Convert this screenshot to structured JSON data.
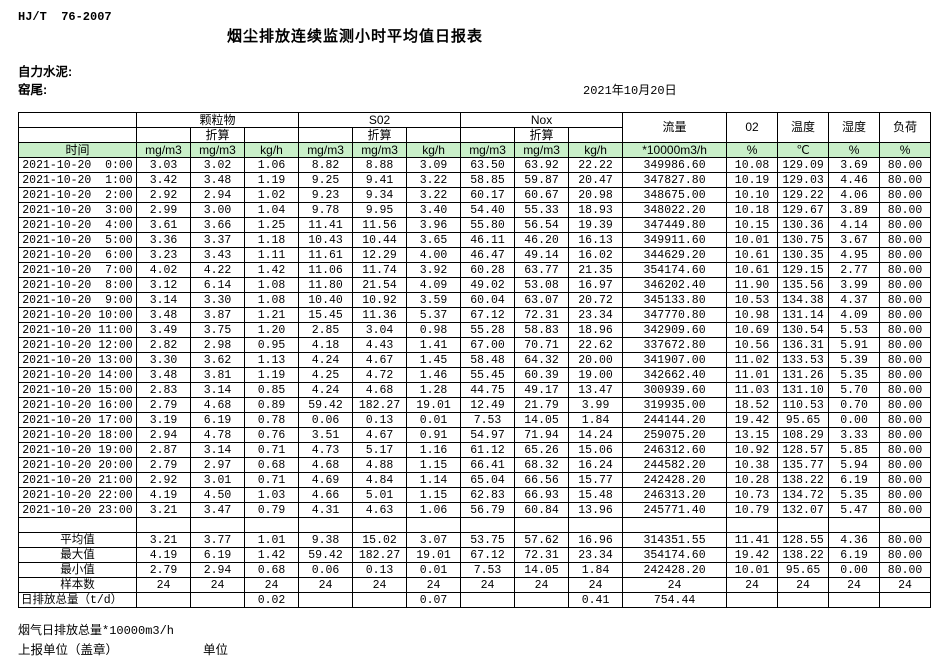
{
  "page": {
    "standard_code": "HJ/T  76-2007",
    "title": "烟尘排放连续监测小时平均值日报表",
    "company": "自力水泥:",
    "location": "窑尾:",
    "date": "2021年10月20日"
  },
  "colors": {
    "header_row_green": "#c9efc9"
  },
  "table": {
    "time_header": "时间",
    "conversion_label": "折算",
    "groups": [
      {
        "label": "颗粒物"
      },
      {
        "label": "S02"
      },
      {
        "label": "Nox"
      }
    ],
    "single_cols": [
      "流量",
      "02",
      "温度",
      "湿度",
      "负荷"
    ],
    "units": [
      "mg/m3",
      "mg/m3",
      "kg/h",
      "mg/m3",
      "mg/m3",
      "kg/h",
      "mg/m3",
      "mg/m3",
      "kg/h",
      "*10000m3/h",
      "%",
      "℃",
      "%",
      "%"
    ],
    "rows": [
      {
        "time": "2021-10-20  0:00",
        "values": [
          "3.03",
          "3.02",
          "1.06",
          "8.82",
          "8.88",
          "3.09",
          "63.50",
          "63.92",
          "22.22",
          "349986.60",
          "10.08",
          "129.09",
          "3.69",
          "80.00"
        ]
      },
      {
        "time": "2021-10-20  1:00",
        "values": [
          "3.42",
          "3.48",
          "1.19",
          "9.25",
          "9.41",
          "3.22",
          "58.85",
          "59.87",
          "20.47",
          "347827.80",
          "10.19",
          "129.03",
          "4.46",
          "80.00"
        ]
      },
      {
        "time": "2021-10-20  2:00",
        "values": [
          "2.92",
          "2.94",
          "1.02",
          "9.23",
          "9.34",
          "3.22",
          "60.17",
          "60.67",
          "20.98",
          "348675.00",
          "10.10",
          "129.22",
          "4.06",
          "80.00"
        ]
      },
      {
        "time": "2021-10-20  3:00",
        "values": [
          "2.99",
          "3.00",
          "1.04",
          "9.78",
          "9.95",
          "3.40",
          "54.40",
          "55.33",
          "18.93",
          "348022.20",
          "10.18",
          "129.67",
          "3.89",
          "80.00"
        ]
      },
      {
        "time": "2021-10-20  4:00",
        "values": [
          "3.61",
          "3.66",
          "1.25",
          "11.41",
          "11.56",
          "3.96",
          "55.80",
          "56.54",
          "19.39",
          "347449.80",
          "10.15",
          "130.36",
          "4.14",
          "80.00"
        ]
      },
      {
        "time": "2021-10-20  5:00",
        "values": [
          "3.36",
          "3.37",
          "1.18",
          "10.43",
          "10.44",
          "3.65",
          "46.11",
          "46.20",
          "16.13",
          "349911.60",
          "10.01",
          "130.75",
          "3.67",
          "80.00"
        ]
      },
      {
        "time": "2021-10-20  6:00",
        "values": [
          "3.23",
          "3.43",
          "1.11",
          "11.61",
          "12.29",
          "4.00",
          "46.47",
          "49.14",
          "16.02",
          "344629.20",
          "10.61",
          "130.35",
          "4.95",
          "80.00"
        ]
      },
      {
        "time": "2021-10-20  7:00",
        "values": [
          "4.02",
          "4.22",
          "1.42",
          "11.06",
          "11.74",
          "3.92",
          "60.28",
          "63.77",
          "21.35",
          "354174.60",
          "10.61",
          "129.15",
          "2.77",
          "80.00"
        ]
      },
      {
        "time": "2021-10-20  8:00",
        "values": [
          "3.12",
          "6.14",
          "1.08",
          "11.80",
          "21.54",
          "4.09",
          "49.02",
          "53.08",
          "16.97",
          "346202.40",
          "11.90",
          "135.56",
          "3.99",
          "80.00"
        ]
      },
      {
        "time": "2021-10-20  9:00",
        "values": [
          "3.14",
          "3.30",
          "1.08",
          "10.40",
          "10.92",
          "3.59",
          "60.04",
          "63.07",
          "20.72",
          "345133.80",
          "10.53",
          "134.38",
          "4.37",
          "80.00"
        ]
      },
      {
        "time": "2021-10-20 10:00",
        "values": [
          "3.48",
          "3.87",
          "1.21",
          "15.45",
          "11.36",
          "5.37",
          "67.12",
          "72.31",
          "23.34",
          "347770.80",
          "10.98",
          "131.14",
          "4.09",
          "80.00"
        ]
      },
      {
        "time": "2021-10-20 11:00",
        "values": [
          "3.49",
          "3.75",
          "1.20",
          "2.85",
          "3.04",
          "0.98",
          "55.28",
          "58.83",
          "18.96",
          "342909.60",
          "10.69",
          "130.54",
          "5.53",
          "80.00"
        ]
      },
      {
        "time": "2021-10-20 12:00",
        "values": [
          "2.82",
          "2.98",
          "0.95",
          "4.18",
          "4.43",
          "1.41",
          "67.00",
          "70.71",
          "22.62",
          "337672.80",
          "10.56",
          "136.31",
          "5.91",
          "80.00"
        ]
      },
      {
        "time": "2021-10-20 13:00",
        "values": [
          "3.30",
          "3.62",
          "1.13",
          "4.24",
          "4.67",
          "1.45",
          "58.48",
          "64.32",
          "20.00",
          "341907.00",
          "11.02",
          "133.53",
          "5.39",
          "80.00"
        ]
      },
      {
        "time": "2021-10-20 14:00",
        "values": [
          "3.48",
          "3.81",
          "1.19",
          "4.25",
          "4.72",
          "1.46",
          "55.45",
          "60.39",
          "19.00",
          "342662.40",
          "11.01",
          "131.26",
          "5.35",
          "80.00"
        ]
      },
      {
        "time": "2021-10-20 15:00",
        "values": [
          "2.83",
          "3.14",
          "0.85",
          "4.24",
          "4.68",
          "1.28",
          "44.75",
          "49.17",
          "13.47",
          "300939.60",
          "11.03",
          "131.10",
          "5.70",
          "80.00"
        ]
      },
      {
        "time": "2021-10-20 16:00",
        "values": [
          "2.79",
          "4.68",
          "0.89",
          "59.42",
          "182.27",
          "19.01",
          "12.49",
          "21.79",
          "3.99",
          "319935.00",
          "18.52",
          "110.53",
          "0.70",
          "80.00"
        ]
      },
      {
        "time": "2021-10-20 17:00",
        "values": [
          "3.19",
          "6.19",
          "0.78",
          "0.06",
          "0.13",
          "0.01",
          "7.53",
          "14.05",
          "1.84",
          "244144.20",
          "19.42",
          "95.65",
          "0.00",
          "80.00"
        ]
      },
      {
        "time": "2021-10-20 18:00",
        "values": [
          "2.94",
          "4.78",
          "0.76",
          "3.51",
          "4.67",
          "0.91",
          "54.97",
          "71.94",
          "14.24",
          "259075.20",
          "13.15",
          "108.29",
          "3.33",
          "80.00"
        ]
      },
      {
        "time": "2021-10-20 19:00",
        "values": [
          "2.87",
          "3.14",
          "0.71",
          "4.73",
          "5.17",
          "1.16",
          "61.12",
          "65.26",
          "15.06",
          "246312.60",
          "10.92",
          "128.57",
          "5.85",
          "80.00"
        ]
      },
      {
        "time": "2021-10-20 20:00",
        "values": [
          "2.79",
          "2.97",
          "0.68",
          "4.68",
          "4.88",
          "1.15",
          "66.41",
          "68.32",
          "16.24",
          "244582.20",
          "10.38",
          "135.77",
          "5.94",
          "80.00"
        ]
      },
      {
        "time": "2021-10-20 21:00",
        "values": [
          "2.92",
          "3.01",
          "0.71",
          "4.69",
          "4.84",
          "1.14",
          "65.04",
          "66.56",
          "15.77",
          "242428.20",
          "10.28",
          "138.22",
          "6.19",
          "80.00"
        ]
      },
      {
        "time": "2021-10-20 22:00",
        "values": [
          "4.19",
          "4.50",
          "1.03",
          "4.66",
          "5.01",
          "1.15",
          "62.83",
          "66.93",
          "15.48",
          "246313.20",
          "10.73",
          "134.72",
          "5.35",
          "80.00"
        ]
      },
      {
        "time": "2021-10-20 23:00",
        "values": [
          "3.21",
          "3.47",
          "0.79",
          "4.31",
          "4.63",
          "1.06",
          "56.79",
          "60.84",
          "13.96",
          "245771.40",
          "10.79",
          "132.07",
          "5.47",
          "80.00"
        ]
      }
    ],
    "summary": [
      {
        "label": "平均值",
        "values": [
          "3.21",
          "3.77",
          "1.01",
          "9.38",
          "15.02",
          "3.07",
          "53.75",
          "57.62",
          "16.96",
          "314351.55",
          "11.41",
          "128.55",
          "4.36",
          "80.00"
        ]
      },
      {
        "label": "最大值",
        "values": [
          "4.19",
          "6.19",
          "1.42",
          "59.42",
          "182.27",
          "19.01",
          "67.12",
          "72.31",
          "23.34",
          "354174.60",
          "19.42",
          "138.22",
          "6.19",
          "80.00"
        ]
      },
      {
        "label": "最小值",
        "values": [
          "2.79",
          "2.94",
          "0.68",
          "0.06",
          "0.13",
          "0.01",
          "7.53",
          "14.05",
          "1.84",
          "242428.20",
          "10.01",
          "95.65",
          "0.00",
          "80.00"
        ]
      },
      {
        "label": "样本数",
        "values": [
          "24",
          "24",
          "24",
          "24",
          "24",
          "24",
          "24",
          "24",
          "24",
          "24",
          "24",
          "24",
          "24",
          "24"
        ]
      },
      {
        "label": "日排放总量（t/d）",
        "values": [
          "",
          "",
          "0.02",
          "",
          "",
          "0.07",
          "",
          "",
          "0.41",
          "754.44",
          "",
          "",
          "",
          ""
        ]
      }
    ]
  },
  "footer": {
    "note": "烟气日排放总量*10000m3/h",
    "report_unit_stamp": "上报单位（盖章）",
    "unit": "单位"
  }
}
